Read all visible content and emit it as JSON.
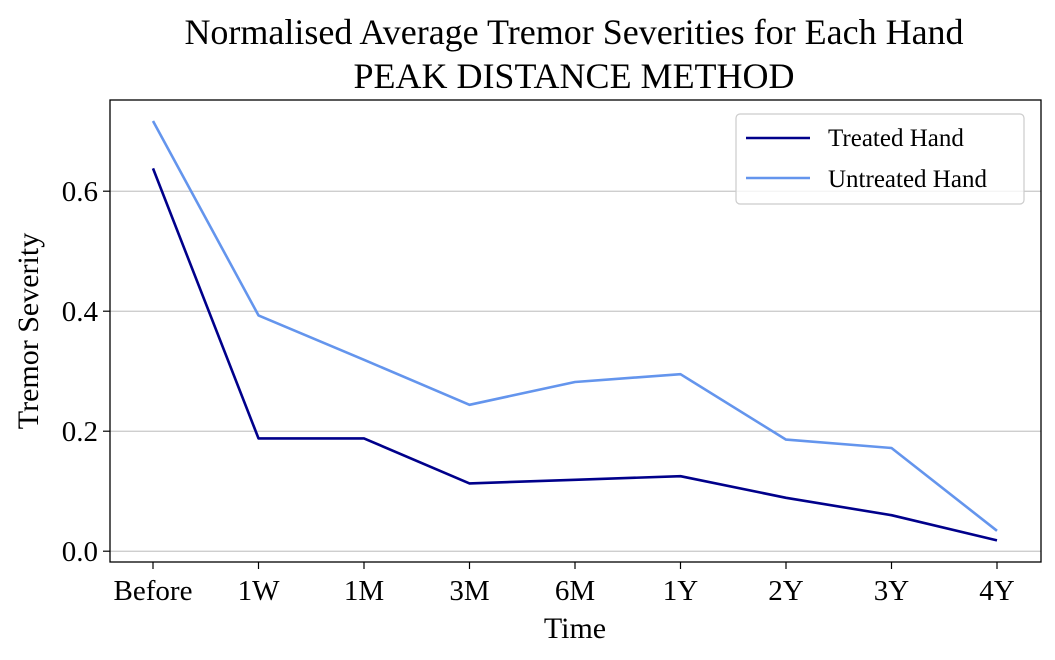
{
  "chart_data": {
    "type": "line",
    "title": "Normalised Average Tremor Severities for Each Hand",
    "subtitle": "PEAK DISTANCE METHOD",
    "xlabel": "Time",
    "ylabel": "Tremor Severity",
    "categories": [
      "Before",
      "1W",
      "1M",
      "3M",
      "6M",
      "1Y",
      "2Y",
      "3Y",
      "4Y"
    ],
    "yticks": [
      0.0,
      0.2,
      0.4,
      0.6
    ],
    "ytick_labels": [
      "0.0",
      "0.2",
      "0.4",
      "0.6"
    ],
    "ylim": [
      -0.018,
      0.752
    ],
    "grid": "horizontal",
    "legend_position": "top-right",
    "series": [
      {
        "name": "Treated Hand",
        "color": "#00008b",
        "values": [
          0.638,
          0.188,
          0.188,
          0.113,
          0.119,
          0.125,
          0.089,
          0.06,
          0.018
        ]
      },
      {
        "name": "Untreated Hand",
        "color": "#6495ed",
        "values": [
          0.717,
          0.393,
          0.319,
          0.244,
          0.282,
          0.295,
          0.186,
          0.172,
          0.034
        ]
      }
    ]
  }
}
